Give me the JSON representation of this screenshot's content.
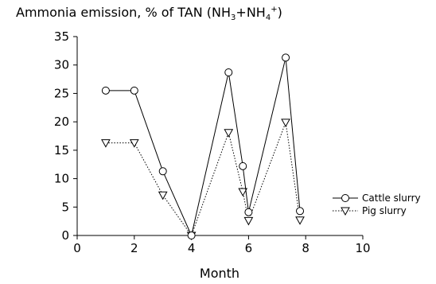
{
  "chart_data": {
    "type": "line",
    "title": "Ammonia emission, % of TAN (NH3+NH4+)",
    "title_parts": {
      "lead": "Ammonia emission, % of TAN (NH",
      "sub1": "3",
      "mid": "+NH",
      "sub2": "4",
      "sup": "+",
      "tail": ")"
    },
    "xlabel": "Month",
    "ylabel": "",
    "xlim": [
      0,
      10
    ],
    "ylim": [
      0,
      35
    ],
    "xticks": [
      0,
      2,
      4,
      6,
      8,
      10
    ],
    "yticks": [
      0,
      5,
      10,
      15,
      20,
      25,
      30,
      35
    ],
    "grid": false,
    "legend_position": "right",
    "series": [
      {
        "name": "Cattle slurry",
        "marker": "circle",
        "line_style": "solid",
        "color": "#000000",
        "points": [
          [
            1,
            25.5
          ],
          [
            2,
            25.5
          ],
          [
            3,
            11.3
          ],
          [
            4,
            0
          ],
          [
            5.3,
            28.7
          ],
          [
            5.8,
            12.2
          ],
          [
            6,
            4.1
          ],
          [
            7.3,
            31.3
          ],
          [
            7.8,
            4.3
          ]
        ]
      },
      {
        "name": "Pig slurry",
        "marker": "triangle-down",
        "line_style": "dotted",
        "color": "#000000",
        "points": [
          [
            1,
            16.3
          ],
          [
            2,
            16.3
          ],
          [
            3,
            7.1
          ],
          [
            4,
            0
          ],
          [
            5.3,
            18.1
          ],
          [
            5.8,
            7.7
          ],
          [
            6,
            2.6
          ],
          [
            7.3,
            19.9
          ],
          [
            7.8,
            2.7
          ]
        ]
      }
    ]
  }
}
